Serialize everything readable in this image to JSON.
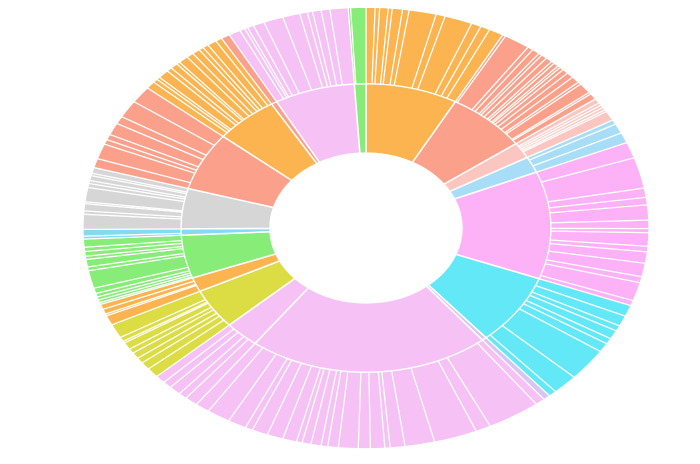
{
  "chart_data": {
    "type": "sunburst",
    "title": "",
    "inner_ring": [
      {
        "name": "",
        "value": 8.0,
        "color": "#fbb450"
      },
      {
        "name": "",
        "value": 7.0,
        "color": "#fba08a"
      },
      {
        "name": "",
        "value": 1.8,
        "color": "#fcc6c0"
      },
      {
        "name": "",
        "value": 1.8,
        "color": "#a8ddf8"
      },
      {
        "name": "",
        "value": 12.0,
        "color": "#fdb2f8"
      },
      {
        "name": "",
        "value": 8.0,
        "color": "#63e8f8"
      },
      {
        "name": "",
        "value": 0.4,
        "color": "#d8c6f2"
      },
      {
        "name": "",
        "value": 21.0,
        "color": "#f6c2f5"
      },
      {
        "name": "",
        "value": 3.0,
        "color": "#f6c2f5"
      },
      {
        "name": "",
        "value": 4.5,
        "color": "#dcdc44"
      },
      {
        "name": "",
        "value": 1.6,
        "color": "#fbb450"
      },
      {
        "name": "",
        "value": 4.8,
        "color": "#88ec78"
      },
      {
        "name": "",
        "value": 0.7,
        "color": "#86d9ee"
      },
      {
        "name": "",
        "value": 4.5,
        "color": "#d6d6d6"
      },
      {
        "name": "",
        "value": 6.5,
        "color": "#fba08a"
      },
      {
        "name": "",
        "value": 5.5,
        "color": "#fbb450"
      },
      {
        "name": "",
        "value": 0.5,
        "color": "#fba08a"
      },
      {
        "name": "",
        "value": 7.0,
        "color": "#f6c2f5"
      },
      {
        "name": "",
        "value": 1.0,
        "color": "#88ec78"
      }
    ],
    "outer_ring_slices_per_parent": [
      12,
      18,
      6,
      3,
      14,
      9,
      1,
      22,
      5,
      9,
      4,
      12,
      2,
      10,
      8,
      14,
      1,
      12,
      2
    ],
    "colors": {
      "orange": "#fbb450",
      "salmon": "#fba08a",
      "light-salmon": "#fcc6c0",
      "light-blue": "#a8ddf8",
      "magenta-pink": "#fdb2f8",
      "cyan": "#63e8f8",
      "pink": "#f6c2f5",
      "yellow": "#dcdc44",
      "green": "#88ec78",
      "gray": "#d6d6d6",
      "background": "#ffffff",
      "separator": "#ffffff"
    }
  }
}
